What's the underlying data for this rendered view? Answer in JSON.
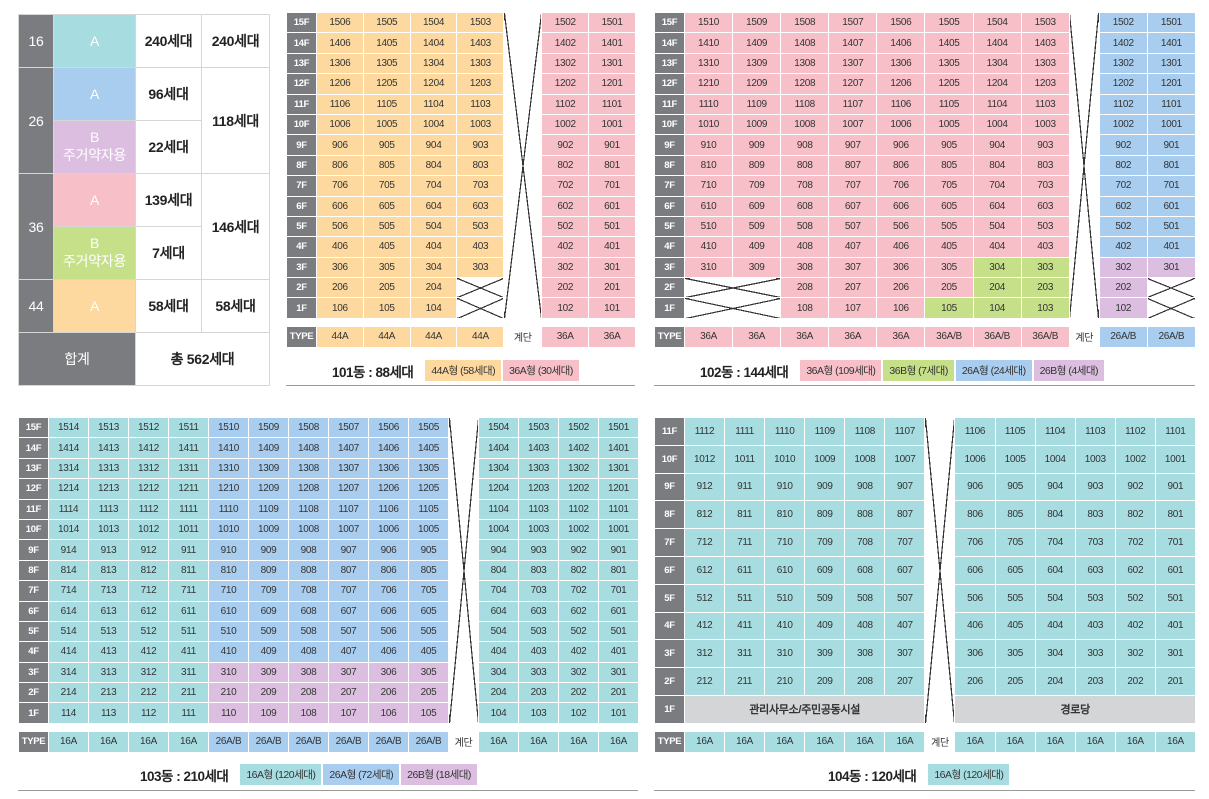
{
  "summary": {
    "rows": [
      {
        "type": "16",
        "sub": [
          {
            "label": "A",
            "sub": "",
            "count": "240세대",
            "color": "c"
          }
        ],
        "total": "240세대"
      },
      {
        "type": "26",
        "sub": [
          {
            "label": "A",
            "sub": "",
            "count": "96세대",
            "color": "b"
          },
          {
            "label": "B",
            "sub": "주거약자용",
            "count": "22세대",
            "color": "v"
          }
        ],
        "total": "118세대"
      },
      {
        "type": "36",
        "sub": [
          {
            "label": "A",
            "sub": "",
            "count": "139세대",
            "color": "p"
          },
          {
            "label": "B",
            "sub": "주거약자용",
            "count": "7세대",
            "color": "g"
          }
        ],
        "total": "146세대"
      },
      {
        "type": "44",
        "sub": [
          {
            "label": "A",
            "sub": "",
            "count": "58세대",
            "color": "y"
          }
        ],
        "total": "58세대"
      }
    ],
    "total_label": "합계",
    "total_value": "총 562세대"
  },
  "common": {
    "type_label": "TYPE",
    "stair_label": "계단",
    "floors": [
      "15F",
      "14F",
      "13F",
      "12F",
      "11F",
      "10F",
      "9F",
      "8F",
      "7F",
      "6F",
      "5F",
      "4F",
      "3F",
      "2F",
      "1F"
    ]
  },
  "b101": {
    "caption": "101동 : 88세대",
    "legend": [
      {
        "text": "44A형 (58세대)",
        "color": "#fdd9a0"
      },
      {
        "text": "36A형 (30세대)",
        "color": "#f7bfc8"
      }
    ],
    "left_cols": [
      "06",
      "05",
      "04",
      "03"
    ],
    "right_cols": [
      "02",
      "01"
    ],
    "types_left": [
      "44A",
      "44A",
      "44A",
      "44A"
    ],
    "types_right": [
      "36A",
      "36A"
    ]
  },
  "b102": {
    "caption": "102동 : 144세대",
    "legend": [
      {
        "text": "36A형 (109세대)",
        "color": "#f7bfc8"
      },
      {
        "text": "36B형 (7세대)",
        "color": "#c6e08a"
      },
      {
        "text": "26A형 (24세대)",
        "color": "#a9cdee"
      },
      {
        "text": "26B형 (4세대)",
        "color": "#dcbfe0"
      }
    ],
    "left_cols": [
      "10",
      "09",
      "08",
      "07",
      "06",
      "05",
      "04",
      "03"
    ],
    "right_cols": [
      "02",
      "01"
    ],
    "types_left": [
      "36A",
      "36A",
      "36A",
      "36A",
      "36A",
      "36A/B",
      "36A/B",
      "36A/B"
    ],
    "types_right": [
      "26A/B",
      "26A/B"
    ]
  },
  "b103": {
    "caption": "103동 : 210세대",
    "legend": [
      {
        "text": "16A형 (120세대)",
        "color": "#a7dde0"
      },
      {
        "text": "26A형 (72세대)",
        "color": "#a9cdee"
      },
      {
        "text": "26B형 (18세대)",
        "color": "#dcbfe0"
      }
    ],
    "left_cols": [
      "14",
      "13",
      "12",
      "11",
      "10",
      "09",
      "08",
      "07",
      "06",
      "05"
    ],
    "right_cols": [
      "04",
      "03",
      "02",
      "01"
    ],
    "types_left": [
      "16A",
      "16A",
      "16A",
      "16A",
      "26A/B",
      "26A/B",
      "26A/B",
      "26A/B",
      "26A/B",
      "26A/B"
    ],
    "types_right": [
      "16A",
      "16A",
      "16A",
      "16A"
    ]
  },
  "b104": {
    "caption": "104동 : 120세대",
    "legend": [
      {
        "text": "16A형 (120세대)",
        "color": "#a7dde0"
      }
    ],
    "floors": [
      "11F",
      "10F",
      "9F",
      "8F",
      "7F",
      "6F",
      "5F",
      "4F",
      "3F",
      "2F",
      "1F"
    ],
    "left_cols": [
      "12",
      "11",
      "10",
      "09",
      "08",
      "07"
    ],
    "right_cols": [
      "06",
      "05",
      "04",
      "03",
      "02",
      "01"
    ],
    "types_left": [
      "16A",
      "16A",
      "16A",
      "16A",
      "16A",
      "16A"
    ],
    "types_right": [
      "16A",
      "16A",
      "16A",
      "16A",
      "16A",
      "16A"
    ],
    "ground_left": "관리사무소/주민공동시설",
    "ground_right": "경로당"
  }
}
